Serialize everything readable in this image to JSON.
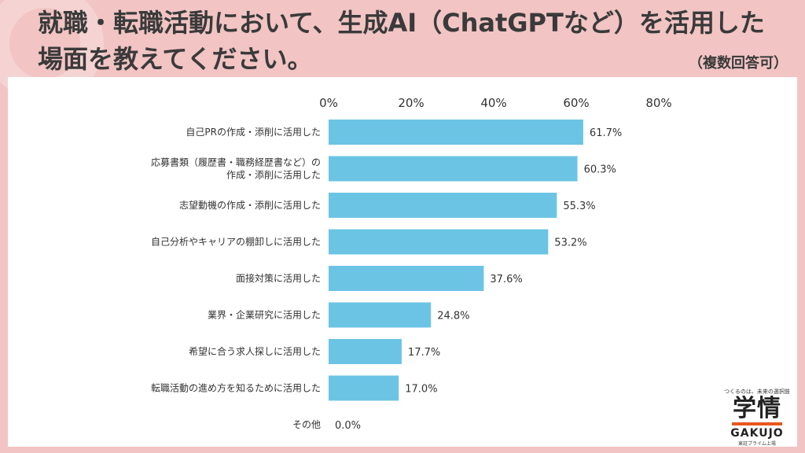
{
  "header": {
    "title": "就職・転職活動において、生成AI（ChatGPTなど）を活用した場面を教えてください。",
    "note": "（複数回答可）"
  },
  "logo": {
    "tagline": "つくるのは、未来の選択肢",
    "kanji": "学情",
    "name": "GAKUJO",
    "sub": "東証プライム上場"
  },
  "colors": {
    "bar": "#6cc4e4",
    "background": "#f2c4c4",
    "panel": "#ffffff"
  },
  "chart_data": {
    "type": "bar",
    "orientation": "horizontal",
    "title": "就職・転職活動において、生成AI（ChatGPTなど）を活用した場面を教えてください。",
    "xlabel": "",
    "ylabel": "",
    "xlim": [
      0,
      80
    ],
    "ticks": [
      "0%",
      "20%",
      "40%",
      "60%",
      "80%"
    ],
    "tick_values": [
      0,
      20,
      40,
      60,
      80
    ],
    "grid": false,
    "categories": [
      "自己PRの作成・添削に活用した",
      "応募書類（履歴書・職務経歴書など）の\n作成・添削に活用した",
      "志望動機の作成・添削に活用した",
      "自己分析やキャリアの棚卸しに活用した",
      "面接対策に活用した",
      "業界・企業研究に活用した",
      "希望に合う求人探しに活用した",
      "転職活動の進め方を知るために活用した",
      "その他"
    ],
    "values": [
      61.7,
      60.3,
      55.3,
      53.2,
      37.6,
      24.8,
      17.7,
      17.0,
      0.0
    ],
    "value_labels": [
      "61.7%",
      "60.3%",
      "55.3%",
      "53.2%",
      "37.6%",
      "24.8%",
      "17.7%",
      "17.0%",
      "0.0%"
    ]
  }
}
